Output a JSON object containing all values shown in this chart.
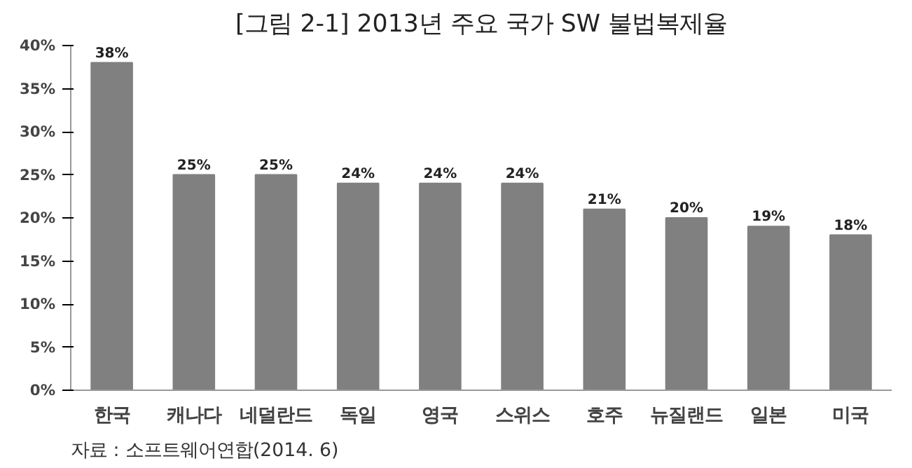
{
  "chart_data": {
    "type": "bar",
    "title": "[그림 2-1] 2013년 주요 국가 SW 불법복제율",
    "categories": [
      "한국",
      "캐나다",
      "네덜란드",
      "독일",
      "영국",
      "스위스",
      "호주",
      "뉴질랜드",
      "일본",
      "미국"
    ],
    "values": [
      38,
      25,
      25,
      24,
      24,
      24,
      21,
      20,
      19,
      18
    ],
    "value_labels": [
      "38%",
      "25%",
      "25%",
      "24%",
      "24%",
      "24%",
      "21%",
      "20%",
      "19%",
      "18%"
    ],
    "color": "#808080",
    "ylim": [
      0,
      40
    ],
    "yticks": [
      {
        "value": 0,
        "label": "0%"
      },
      {
        "value": 5,
        "label": "5%"
      },
      {
        "value": 10,
        "label": "10%"
      },
      {
        "value": 15,
        "label": "15%"
      },
      {
        "value": 20,
        "label": "20%"
      },
      {
        "value": 25,
        "label": "25%"
      },
      {
        "value": 30,
        "label": "30%"
      },
      {
        "value": 35,
        "label": "35%"
      },
      {
        "value": 40,
        "label": "40%"
      }
    ],
    "grid": false,
    "annotations": [
      "자료 : 소프트웨어연합(2014. 6)"
    ]
  }
}
